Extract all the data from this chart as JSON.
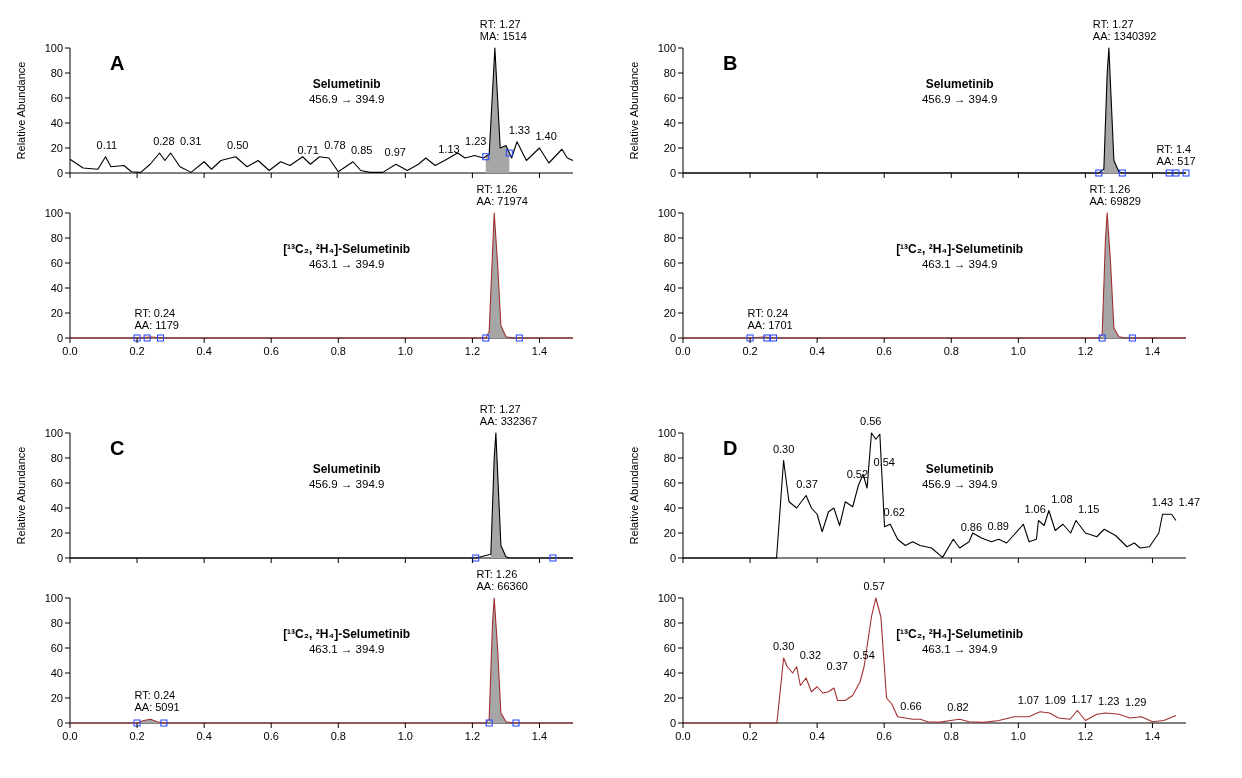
{
  "chart_data": [
    {
      "type": "line",
      "title": "A",
      "ylabel": "Relative Abundance",
      "xlim": [
        0,
        1.5
      ],
      "ylim": [
        0,
        100
      ],
      "yticks": [
        0,
        20,
        40,
        60,
        80,
        100
      ],
      "xticks": [
        0,
        0.2,
        0.4,
        0.6,
        0.8,
        1,
        1.2,
        1.4
      ],
      "tick_labels": "y",
      "series": [
        {
          "type": "area",
          "color": "#a6a6a6",
          "x": [
            1.24,
            1.25,
            1.267,
            1.283,
            1.3,
            1.31
          ],
          "values": [
            13,
            15,
            100,
            20,
            22,
            16
          ]
        },
        {
          "type": "line",
          "color": "#000000",
          "x": [
            0,
            0.039,
            0.083,
            0.106,
            0.122,
            0.161,
            0.183,
            0.211,
            0.239,
            0.267,
            0.283,
            0.3,
            0.328,
            0.361,
            0.4,
            0.422,
            0.45,
            0.494,
            0.528,
            0.561,
            0.594,
            0.628,
            0.656,
            0.694,
            0.717,
            0.744,
            0.772,
            0.8,
            0.844,
            0.867,
            0.894,
            0.933,
            0.972,
            1.006,
            1.039,
            1.061,
            1.089,
            1.117,
            1.156,
            1.178,
            1.206,
            1.233,
            1.25,
            1.267,
            1.283,
            1.3,
            1.317,
            1.333,
            1.361,
            1.4,
            1.428,
            1.467,
            1.483,
            1.5
          ],
          "values": [
            11,
            4,
            3,
            13,
            5,
            6,
            1,
            0.5,
            7,
            16,
            10,
            16,
            5,
            0.5,
            9,
            3,
            10,
            13,
            5,
            10,
            2,
            9,
            6,
            13,
            7,
            13,
            12,
            1,
            9,
            2,
            0.5,
            0.5,
            7,
            2,
            7,
            12,
            6,
            10,
            16,
            12,
            14,
            12,
            15,
            100,
            20,
            22,
            12,
            25,
            10,
            20,
            8,
            19,
            12,
            10
          ]
        },
        {
          "type": "scatter",
          "color": "#2040ff",
          "marker": "square",
          "x": [
            1.24,
            1.31
          ],
          "values": [
            13,
            16
          ]
        }
      ],
      "annotations": [
        "Selumetinib",
        "456.9 → 394.9",
        {
          "text": "RT: 1.27\nMA: 1514",
          "x": 1.27,
          "y": 100
        },
        {
          "text": "0.11",
          "x": 0.11,
          "y": 13
        },
        {
          "text": "0.28",
          "x": 0.28,
          "y": 16
        },
        {
          "text": "0.31",
          "x": 0.31,
          "y": 16
        },
        {
          "text": "0.50",
          "x": 0.5,
          "y": 13
        },
        {
          "text": "0.71",
          "x": 0.71,
          "y": 9
        },
        {
          "text": "0.78",
          "x": 0.78,
          "y": 13
        },
        {
          "text": "0.85",
          "x": 0.85,
          "y": 9
        },
        {
          "text": "0.97",
          "x": 0.97,
          "y": 7
        },
        {
          "text": "1.13",
          "x": 1.13,
          "y": 10
        },
        {
          "text": "1.23",
          "x": 1.21,
          "y": 16
        },
        {
          "text": "1.33",
          "x": 1.34,
          "y": 25
        },
        {
          "text": "1.40",
          "x": 1.4,
          "y": 20
        }
      ]
    },
    {
      "type": "line",
      "xlim": [
        0,
        1.5
      ],
      "ylim": [
        0,
        100
      ],
      "yticks": [
        0,
        20,
        40,
        60,
        80,
        100
      ],
      "xticks": [
        {
          "value": 0,
          "label": "0.0"
        },
        {
          "value": 0.2,
          "label": "0.2"
        },
        {
          "value": 0.4,
          "label": "0.4"
        },
        {
          "value": 0.6,
          "label": "0.6"
        },
        {
          "value": 0.8,
          "label": "0.8"
        },
        {
          "value": 1.0,
          "label": "1.0"
        },
        {
          "value": 1.2,
          "label": "1.2"
        },
        {
          "value": 1.4,
          "label": "1.4"
        }
      ],
      "series": [
        {
          "type": "area",
          "color": "#a6a6a6",
          "x": [
            1.25,
            1.265,
            1.275,
            1.285,
            1.3
          ],
          "values": [
            5,
            100,
            60,
            10,
            1
          ]
        },
        {
          "type": "line",
          "color": "#a03030",
          "x": [
            0,
            0.2,
            0.24,
            0.28,
            1.24,
            1.25,
            1.265,
            1.275,
            1.285,
            1.3,
            1.32,
            1.5
          ],
          "values": [
            0,
            0,
            0.8,
            0,
            0,
            5,
            100,
            60,
            10,
            1,
            0,
            0
          ]
        },
        {
          "type": "scatter",
          "color": "#2040ff",
          "marker": "square",
          "x": [
            0.2,
            0.23,
            0.27,
            1.24,
            1.34
          ],
          "values": [
            0,
            0,
            0,
            0,
            0
          ]
        }
      ],
      "annotations": [
        "[¹³C₂, ²H₄]-Selumetinib",
        "463.1 → 394.9",
        {
          "text": "RT: 0.24\nAA: 1179",
          "x": 0.24,
          "y": 0.8
        },
        {
          "text": "RT: 1.26\nAA: 71974",
          "x": 1.26,
          "y": 100
        }
      ]
    },
    {
      "type": "line",
      "title": "B",
      "ylabel": "Relative Abundance",
      "xlim": [
        0,
        1.5
      ],
      "ylim": [
        0,
        100
      ],
      "yticks": [
        0,
        20,
        40,
        60,
        80,
        100
      ],
      "xticks": [
        0,
        0.2,
        0.4,
        0.6,
        0.8,
        1,
        1.2,
        1.4
      ],
      "tick_labels": "y",
      "series": [
        {
          "type": "area",
          "color": "#a6a6a6",
          "x": [
            1.255,
            1.265,
            1.27,
            1.275,
            1.285,
            1.3
          ],
          "values": [
            3,
            80,
            100,
            70,
            10,
            1
          ]
        },
        {
          "type": "line",
          "color": "#000000",
          "x": [
            0,
            1.24,
            1.255,
            1.265,
            1.27,
            1.275,
            1.285,
            1.3,
            1.31,
            1.5
          ],
          "values": [
            0,
            0,
            3,
            80,
            100,
            70,
            10,
            1,
            0,
            0
          ]
        },
        {
          "type": "scatter",
          "color": "#2040ff",
          "marker": "square",
          "x": [
            1.24,
            1.31,
            1.45,
            1.47,
            1.5
          ],
          "values": [
            0,
            0,
            0,
            0,
            0
          ]
        }
      ],
      "annotations": [
        "Selumetinib",
        "456.9 → 394.9",
        {
          "text": "RT: 1.27\nAA: 1340392",
          "x": 1.27,
          "y": 100
        },
        {
          "text": "RT: 1.4\nAA: 517",
          "x": 1.46,
          "y": 0
        }
      ]
    },
    {
      "type": "line",
      "xlim": [
        0,
        1.5
      ],
      "ylim": [
        0,
        100
      ],
      "yticks": [
        0,
        20,
        40,
        60,
        80,
        100
      ],
      "xticks": [
        {
          "value": 0,
          "label": "0.0"
        },
        {
          "value": 0.2,
          "label": "0.2"
        },
        {
          "value": 0.4,
          "label": "0.4"
        },
        {
          "value": 0.6,
          "label": "0.6"
        },
        {
          "value": 0.8,
          "label": "0.8"
        },
        {
          "value": 1.0,
          "label": "1.0"
        },
        {
          "value": 1.2,
          "label": "1.2"
        },
        {
          "value": 1.4,
          "label": "1.4"
        }
      ],
      "series": [
        {
          "type": "area",
          "color": "#a6a6a6",
          "x": [
            1.25,
            1.26,
            1.265,
            1.275,
            1.285,
            1.3
          ],
          "values": [
            3,
            80,
            100,
            60,
            8,
            1
          ]
        },
        {
          "type": "line",
          "color": "#a03030",
          "x": [
            0,
            0.2,
            0.24,
            0.28,
            1.24,
            1.25,
            1.26,
            1.265,
            1.275,
            1.285,
            1.3,
            1.32,
            1.5
          ],
          "values": [
            0,
            0,
            0.8,
            0,
            0,
            3,
            80,
            100,
            60,
            8,
            1,
            0,
            0
          ]
        },
        {
          "type": "scatter",
          "color": "#2040ff",
          "marker": "square",
          "x": [
            0.2,
            0.25,
            0.27,
            1.25,
            1.34
          ],
          "values": [
            0,
            0,
            0,
            0,
            0
          ]
        }
      ],
      "annotations": [
        "[¹³C₂, ²H₄]-Selumetinib",
        "463.1 → 394.9",
        {
          "text": "RT: 0.24\nAA: 1701",
          "x": 0.24,
          "y": 0.8
        },
        {
          "text": "RT: 1.26\nAA: 69829",
          "x": 1.26,
          "y": 100
        }
      ]
    },
    {
      "type": "line",
      "title": "C",
      "ylabel": "Relative Abundance",
      "xlim": [
        0,
        1.5
      ],
      "ylim": [
        0,
        100
      ],
      "yticks": [
        0,
        20,
        40,
        60,
        80,
        100
      ],
      "xticks": [
        0,
        0.2,
        0.4,
        0.6,
        0.8,
        1,
        1.2,
        1.4
      ],
      "tick_labels": "y",
      "series": [
        {
          "type": "area",
          "color": "#a6a6a6",
          "x": [
            1.255,
            1.265,
            1.27,
            1.275,
            1.285,
            1.3
          ],
          "values": [
            3,
            80,
            100,
            70,
            10,
            1
          ]
        },
        {
          "type": "line",
          "color": "#000000",
          "x": [
            0,
            1.21,
            1.255,
            1.265,
            1.27,
            1.275,
            1.285,
            1.3,
            1.31,
            1.5
          ],
          "values": [
            0,
            0,
            3,
            80,
            100,
            70,
            10,
            1,
            0,
            0
          ]
        },
        {
          "type": "scatter",
          "color": "#2040ff",
          "marker": "square",
          "x": [
            1.21,
            1.44
          ],
          "values": [
            0,
            0
          ]
        }
      ],
      "annotations": [
        "Selumetinib",
        "456.9 → 394.9",
        {
          "text": "RT: 1.27\nAA: 332367",
          "x": 1.27,
          "y": 100
        }
      ]
    },
    {
      "type": "line",
      "xlim": [
        0,
        1.5
      ],
      "ylim": [
        0,
        100
      ],
      "yticks": [
        0,
        20,
        40,
        60,
        80,
        100
      ],
      "xticks": [
        {
          "value": 0,
          "label": "0.0"
        },
        {
          "value": 0.2,
          "label": "0.2"
        },
        {
          "value": 0.4,
          "label": "0.4"
        },
        {
          "value": 0.6,
          "label": "0.6"
        },
        {
          "value": 0.8,
          "label": "0.8"
        },
        {
          "value": 1.0,
          "label": "1.0"
        },
        {
          "value": 1.2,
          "label": "1.2"
        },
        {
          "value": 1.4,
          "label": "1.4"
        }
      ],
      "series": [
        {
          "type": "area",
          "color": "#a6a6a6",
          "x": [
            0.2,
            0.22,
            0.24,
            0.26,
            0.28,
            0.75,
            1.25,
            1.26,
            1.265,
            1.275,
            1.285,
            1.3
          ],
          "values": [
            0,
            2,
            3,
            1,
            0,
            null,
            3,
            80,
            100,
            60,
            8,
            1
          ]
        },
        {
          "type": "line",
          "color": "#a03030",
          "x": [
            0,
            0.2,
            0.22,
            0.24,
            0.26,
            0.28,
            1.24,
            1.25,
            1.26,
            1.265,
            1.275,
            1.285,
            1.3,
            1.32,
            1.5
          ],
          "values": [
            0,
            0,
            2,
            3,
            1,
            0,
            0,
            3,
            80,
            100,
            60,
            8,
            1,
            0,
            0
          ]
        },
        {
          "type": "scatter",
          "color": "#2040ff",
          "marker": "square",
          "x": [
            0.2,
            0.28,
            1.25,
            1.33
          ],
          "values": [
            0,
            0,
            0,
            0
          ]
        }
      ],
      "annotations": [
        "[¹³C₂, ²H₄]-Selumetinib",
        "463.1 → 394.9",
        {
          "text": "RT: 0.24\nAA: 5091",
          "x": 0.24,
          "y": 3
        },
        {
          "text": "RT: 1.26\nAA: 66360",
          "x": 1.26,
          "y": 100
        }
      ]
    },
    {
      "type": "line",
      "title": "D",
      "ylabel": "Relative Abundance",
      "xlim": [
        0,
        1.5
      ],
      "ylim": [
        0,
        100
      ],
      "yticks": [
        0,
        20,
        40,
        60,
        80,
        100
      ],
      "xticks": [
        0,
        0.2,
        0.4,
        0.6,
        0.8,
        1,
        1.2,
        1.4
      ],
      "tick_labels": "y",
      "series": [
        {
          "type": "line",
          "color": "#000000",
          "x": [
            0,
            0.279,
            0.3,
            0.316,
            0.339,
            0.353,
            0.367,
            0.383,
            0.4,
            0.415,
            0.434,
            0.45,
            0.467,
            0.484,
            0.506,
            0.523,
            0.537,
            0.549,
            0.562,
            0.575,
            0.587,
            0.601,
            0.618,
            0.64,
            0.663,
            0.685,
            0.707,
            0.741,
            0.774,
            0.806,
            0.825,
            0.853,
            0.864,
            0.89,
            0.92,
            0.942,
            0.965,
            0.982,
            1.015,
            1.032,
            1.054,
            1.06,
            1.077,
            1.091,
            1.11,
            1.133,
            1.156,
            1.172,
            1.2,
            1.234,
            1.256,
            1.29,
            1.324,
            1.346,
            1.363,
            1.391,
            1.419,
            1.43,
            1.457,
            1.47
          ],
          "values": [
            0,
            0,
            78,
            45,
            40,
            45,
            50,
            40,
            35,
            21,
            37,
            40,
            26,
            45,
            41,
            58,
            67,
            56,
            100,
            95,
            99,
            25,
            27,
            15,
            10,
            13,
            10,
            8,
            0.5,
            15,
            8,
            13,
            20,
            16,
            13,
            15,
            12,
            17,
            27,
            13,
            15,
            30,
            26,
            38,
            22,
            27,
            20,
            30,
            20,
            17,
            23,
            18,
            9,
            12,
            8,
            9,
            20,
            35,
            35,
            30
          ]
        }
      ],
      "annotations": [
        "Selumetinib",
        "456.9 → 394.9",
        {
          "text": "0.30",
          "x": 0.3,
          "y": 78
        },
        {
          "text": "0.37",
          "x": 0.37,
          "y": 50
        },
        {
          "text": "0.52",
          "x": 0.52,
          "y": 58
        },
        {
          "text": "0.54",
          "x": 0.54,
          "y": 67
        },
        {
          "text": "0.56",
          "x": 0.56,
          "y": 100
        },
        {
          "text": "0.62",
          "x": 0.63,
          "y": 27
        },
        {
          "text": "0.86",
          "x": 0.86,
          "y": 15
        },
        {
          "text": "0.89",
          "x": 0.89,
          "y": 16
        },
        {
          "text": "1.06",
          "x": 1.05,
          "y": 30
        },
        {
          "text": "1.08",
          "x": 1.09,
          "y": 38
        },
        {
          "text": "1.15",
          "x": 1.16,
          "y": 30
        },
        {
          "text": "1.43",
          "x": 1.43,
          "y": 35
        },
        {
          "text": "1.47",
          "x": 1.46,
          "y": 35
        }
      ]
    },
    {
      "type": "line",
      "xlim": [
        0,
        1.5
      ],
      "ylim": [
        0,
        100
      ],
      "yticks": [
        0,
        20,
        40,
        60,
        80,
        100
      ],
      "xticks": [
        {
          "value": 0,
          "label": "0.0"
        },
        {
          "value": 0.2,
          "label": "0.2"
        },
        {
          "value": 0.4,
          "label": "0.4"
        },
        {
          "value": 0.6,
          "label": "0.6"
        },
        {
          "value": 0.8,
          "label": "0.8"
        },
        {
          "value": 1.0,
          "label": "1.0"
        },
        {
          "value": 1.2,
          "label": "1.2"
        },
        {
          "value": 1.4,
          "label": "1.4"
        }
      ],
      "series": [
        {
          "type": "line",
          "color": "#a03030",
          "x": [
            0,
            0.28,
            0.3,
            0.311,
            0.327,
            0.339,
            0.35,
            0.367,
            0.383,
            0.4,
            0.417,
            0.434,
            0.45,
            0.461,
            0.484,
            0.506,
            0.528,
            0.54,
            0.562,
            0.575,
            0.59,
            0.607,
            0.623,
            0.64,
            0.663,
            0.685,
            0.707,
            0.73,
            0.763,
            0.797,
            0.825,
            0.853,
            0.897,
            0.942,
            0.987,
            1.031,
            1.065,
            1.093,
            1.12,
            1.154,
            1.176,
            1.2,
            1.234,
            1.26,
            1.3,
            1.333,
            1.367,
            1.4,
            1.434,
            1.47
          ],
          "values": [
            0,
            0,
            52,
            45,
            40,
            45,
            30,
            36,
            25,
            29,
            24,
            25,
            28,
            18,
            18,
            22,
            33,
            45,
            85,
            100,
            85,
            20,
            15,
            5,
            4,
            3,
            3,
            1,
            0.5,
            2,
            3,
            1,
            0.5,
            2,
            5,
            5,
            9,
            8,
            4,
            3,
            10,
            2,
            7,
            8,
            7,
            4,
            5,
            1,
            2,
            6
          ]
        }
      ],
      "annotations": [
        "[¹³C₂, ²H₄]-Selumetinib",
        "463.1 → 394.9",
        {
          "text": "0.30",
          "x": 0.3,
          "y": 52
        },
        {
          "text": "0.32",
          "x": 0.34,
          "y": 45
        },
        {
          "text": "0.37",
          "x": 0.38,
          "y": 36
        },
        {
          "text": "0.54",
          "x": 0.54,
          "y": 45
        },
        {
          "text": "0.57",
          "x": 0.57,
          "y": 100
        },
        {
          "text": "0.66",
          "x": 0.68,
          "y": 4
        },
        {
          "text": "0.82",
          "x": 0.82,
          "y": 3
        },
        {
          "text": "1.07",
          "x": 1.03,
          "y": 9
        },
        {
          "text": "1.09",
          "x": 1.1,
          "y": 9
        },
        {
          "text": "1.17",
          "x": 1.18,
          "y": 10
        },
        {
          "text": "1.23",
          "x": 1.25,
          "y": 8
        },
        {
          "text": "1.29",
          "x": 1.35,
          "y": 7
        }
      ]
    }
  ]
}
